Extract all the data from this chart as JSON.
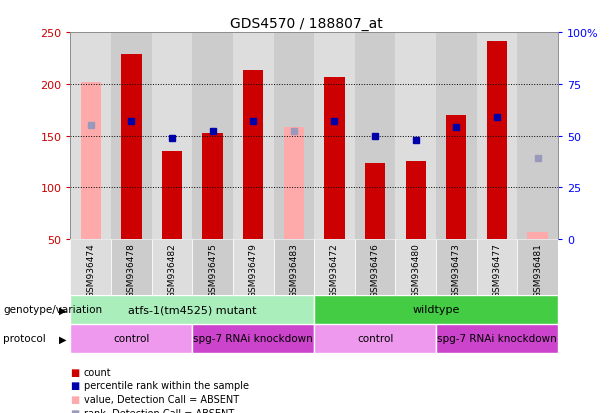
{
  "title": "GDS4570 / 188807_at",
  "samples": [
    "GSM936474",
    "GSM936478",
    "GSM936482",
    "GSM936475",
    "GSM936479",
    "GSM936483",
    "GSM936472",
    "GSM936476",
    "GSM936480",
    "GSM936473",
    "GSM936477",
    "GSM936481"
  ],
  "counts": [
    null,
    229,
    135,
    153,
    213,
    null,
    207,
    124,
    125,
    170,
    241,
    null
  ],
  "counts_absent": [
    202,
    null,
    null,
    null,
    null,
    158,
    null,
    null,
    null,
    null,
    null,
    57
  ],
  "percentile_ranks_pct": [
    null,
    57,
    49,
    52,
    57,
    null,
    57,
    50,
    48,
    54,
    59,
    null
  ],
  "percentile_ranks_absent_pct": [
    55,
    null,
    null,
    null,
    null,
    52,
    null,
    null,
    null,
    null,
    null,
    39
  ],
  "ylim_left": [
    50,
    250
  ],
  "ylim_right": [
    0,
    100
  ],
  "yticks_left": [
    50,
    100,
    150,
    200,
    250
  ],
  "yticks_right": [
    0,
    25,
    50,
    75,
    100
  ],
  "ytick_labels_right": [
    "0",
    "25",
    "50",
    "75",
    "100%"
  ],
  "bar_width": 0.5,
  "color_count": "#cc0000",
  "color_count_absent": "#ffaaaa",
  "color_rank": "#0000aa",
  "color_rank_absent": "#9999bb",
  "background_color": "#ffffff",
  "col_bg_even": "#dddddd",
  "col_bg_odd": "#cccccc",
  "genotype_groups": [
    {
      "label": "atfs-1(tm4525) mutant",
      "start": 0,
      "end": 6,
      "color": "#aaeebb"
    },
    {
      "label": "wildtype",
      "start": 6,
      "end": 12,
      "color": "#44cc44"
    }
  ],
  "protocol_groups": [
    {
      "label": "control",
      "start": 0,
      "end": 3,
      "color": "#ee99ee"
    },
    {
      "label": "spg-7 RNAi knockdown",
      "start": 3,
      "end": 6,
      "color": "#cc44cc"
    },
    {
      "label": "control",
      "start": 6,
      "end": 9,
      "color": "#ee99ee"
    },
    {
      "label": "spg-7 RNAi knockdown",
      "start": 9,
      "end": 12,
      "color": "#cc44cc"
    }
  ],
  "legend_items": [
    {
      "label": "count",
      "color": "#cc0000"
    },
    {
      "label": "percentile rank within the sample",
      "color": "#0000aa"
    },
    {
      "label": "value, Detection Call = ABSENT",
      "color": "#ffaaaa"
    },
    {
      "label": "rank, Detection Call = ABSENT",
      "color": "#9999bb"
    }
  ],
  "genotype_label": "genotype/variation",
  "protocol_label": "protocol"
}
